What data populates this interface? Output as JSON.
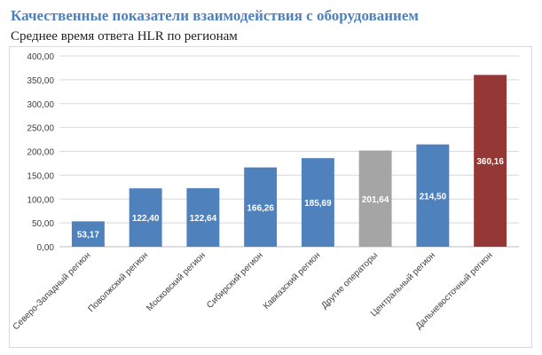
{
  "page": {
    "title": "Качественные показатели взаимодействия с оборудованием",
    "subtitle": "Среднее время ответа HLR по регионам"
  },
  "chart_data": {
    "type": "bar",
    "title": "",
    "xlabel": "",
    "ylabel": "",
    "ylim": [
      0,
      400
    ],
    "yticks": [
      "0,00",
      "50,00",
      "100,00",
      "150,00",
      "200,00",
      "250,00",
      "300,00",
      "350,00",
      "400,00"
    ],
    "grid": true,
    "legend": "none",
    "categories": [
      "Северо-Западный регион",
      "Поволжский регион",
      "Московский регион",
      "Сибирский регион",
      "Кавказский регион",
      "Другие операторы",
      "Центральный регион",
      "Дальневосточный регион"
    ],
    "values": [
      53.17,
      122.4,
      122.64,
      166.26,
      185.69,
      201.64,
      214.5,
      360.16
    ],
    "data_labels": [
      "53,17",
      "122,40",
      "122,64",
      "166,26",
      "185,69",
      "201,64",
      "214,50",
      "360,16"
    ],
    "colors": [
      "#4f81bd",
      "#4f81bd",
      "#4f81bd",
      "#4f81bd",
      "#4f81bd",
      "#a5a5a5",
      "#4f81bd",
      "#953735"
    ]
  }
}
